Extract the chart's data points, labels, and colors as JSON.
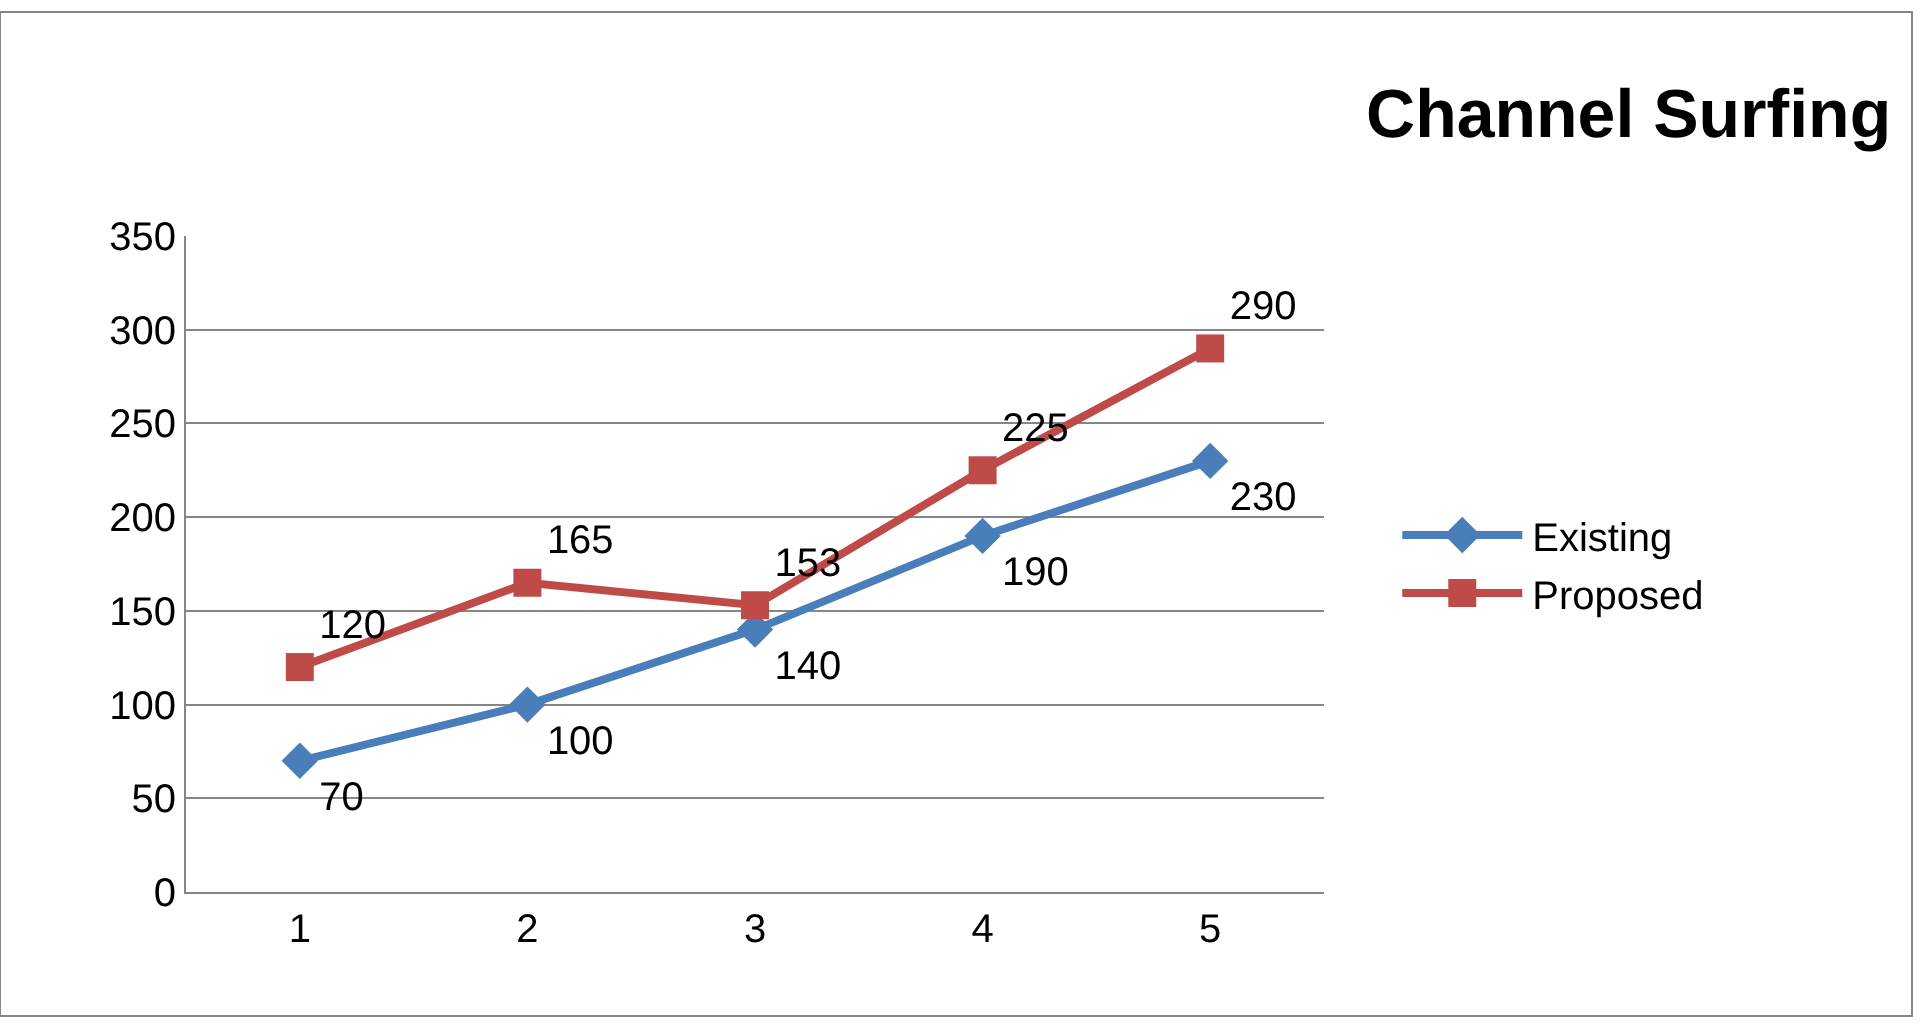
{
  "chart_data": {
    "type": "line",
    "title": "Channel Surfing",
    "categories": [
      "1",
      "2",
      "3",
      "4",
      "5"
    ],
    "series": [
      {
        "name": "Existing",
        "color": "#4a7ebb",
        "marker": "diamond",
        "values": [
          70,
          100,
          140,
          190,
          230
        ]
      },
      {
        "name": "Proposed",
        "color": "#be4b48",
        "marker": "square",
        "values": [
          120,
          165,
          153,
          225,
          290
        ]
      }
    ],
    "ylim": [
      0,
      350
    ],
    "yticks": [
      0,
      50,
      100,
      150,
      200,
      250,
      300,
      350
    ],
    "grid": "y",
    "legend": "right",
    "data_labels": true,
    "line_style": "solid"
  }
}
